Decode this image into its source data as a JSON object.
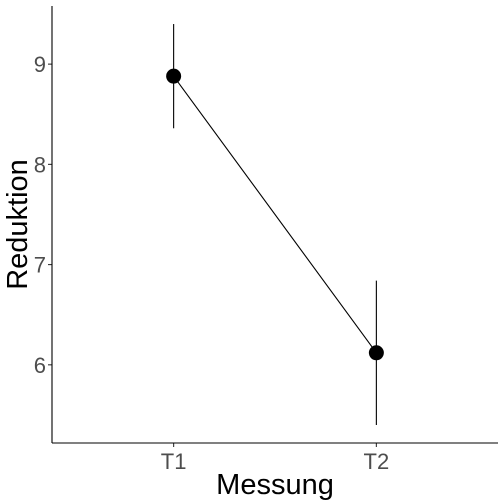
{
  "chart_data": {
    "type": "line",
    "title": "",
    "xlabel": "Messung",
    "ylabel": "Reduktion",
    "categories": [
      "T1",
      "T2"
    ],
    "series": [
      {
        "values": [
          8.88,
          6.12
        ],
        "error_low": [
          8.36,
          5.4
        ],
        "error_high": [
          9.4,
          6.84
        ]
      }
    ],
    "ylim": [
      5.22,
      9.58
    ],
    "yticks": [
      6,
      7,
      8,
      9
    ],
    "grid": false,
    "legend": "none"
  }
}
